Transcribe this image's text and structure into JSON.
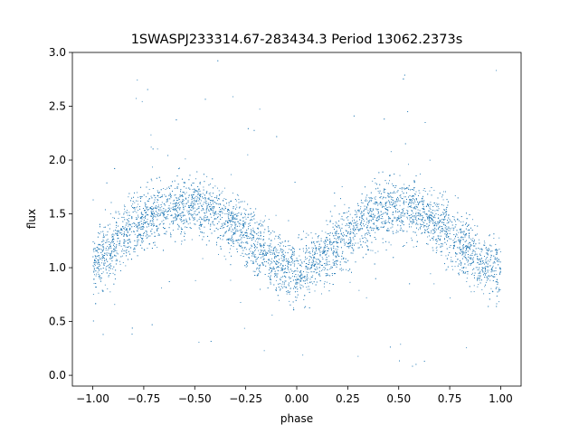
{
  "chart_data": {
    "type": "scatter",
    "title": "1SWASPJ233314.67-283434.3 Period 13062.2373s",
    "xlabel": "phase",
    "ylabel": "flux",
    "xlim": [
      -1.1,
      1.1
    ],
    "ylim": [
      -0.1,
      3.0
    ],
    "xticks": [
      -1.0,
      -0.75,
      -0.5,
      -0.25,
      0.0,
      0.25,
      0.5,
      0.75,
      1.0
    ],
    "xtick_labels": [
      "−1.00",
      "−0.75",
      "−0.50",
      "−0.25",
      "0.00",
      "0.25",
      "0.50",
      "0.75",
      "1.00"
    ],
    "yticks": [
      0.0,
      0.5,
      1.0,
      1.5,
      2.0,
      2.5,
      3.0
    ],
    "ytick_labels": [
      "0.0",
      "0.5",
      "1.0",
      "1.5",
      "2.0",
      "2.5",
      "3.0"
    ],
    "grid": false,
    "marker_color": "#1f77b4",
    "series": [
      {
        "x": [
          -1.0,
          -0.9,
          -0.8,
          -0.7,
          -0.6,
          -0.5,
          -0.4,
          -0.3,
          -0.2,
          -0.1,
          0.0,
          0.1,
          0.2,
          0.3,
          0.4,
          0.5,
          0.6,
          0.7,
          0.8,
          0.9,
          1.0
        ],
        "y": [
          1.0,
          1.2,
          1.38,
          1.5,
          1.56,
          1.56,
          1.5,
          1.38,
          1.2,
          1.05,
          0.95,
          1.05,
          1.22,
          1.4,
          1.52,
          1.56,
          1.52,
          1.4,
          1.22,
          1.05,
          0.97
        ]
      }
    ]
  }
}
